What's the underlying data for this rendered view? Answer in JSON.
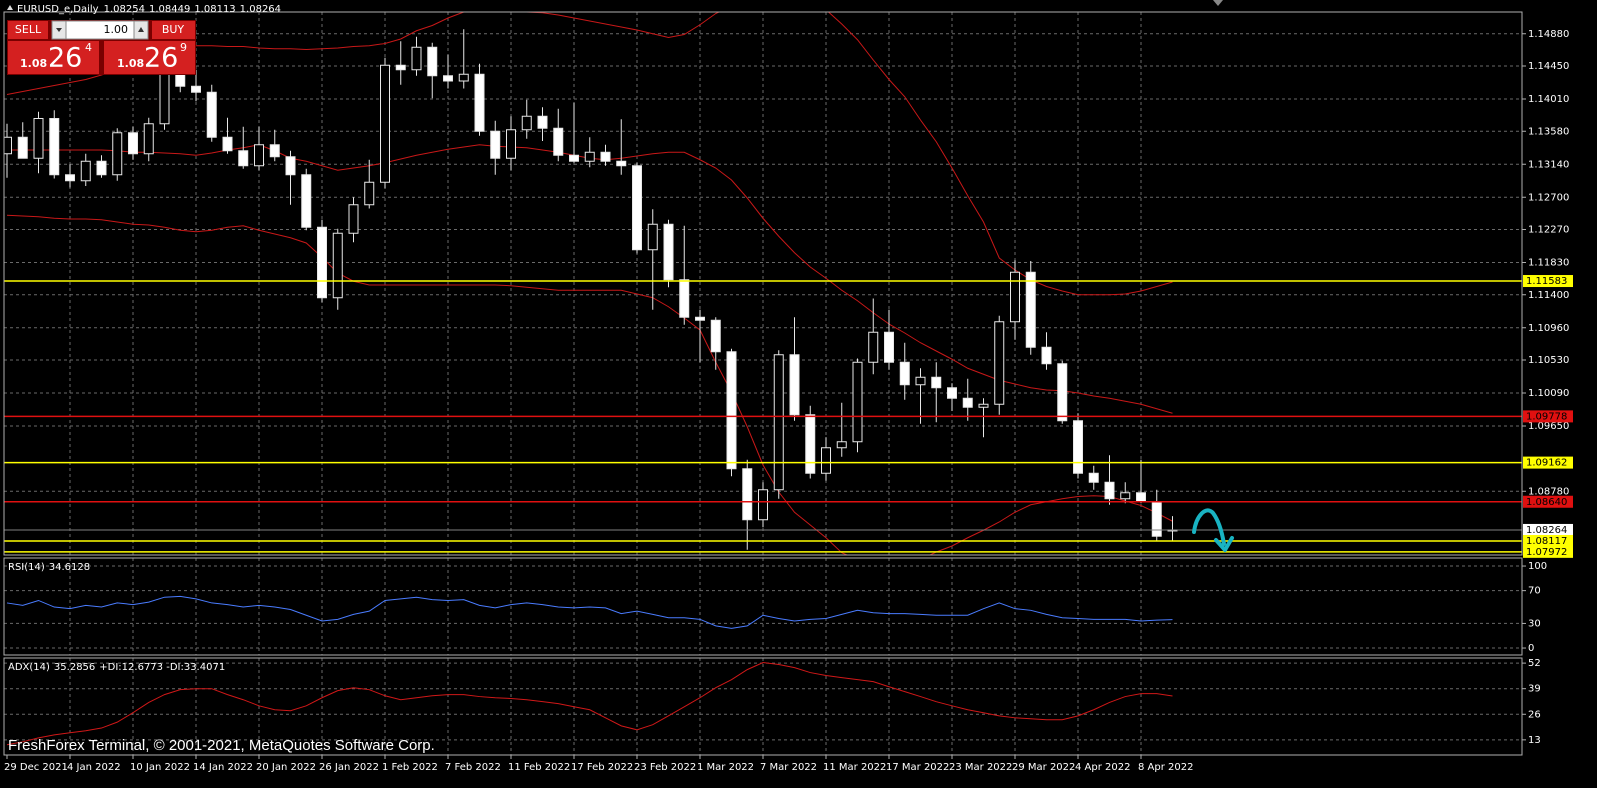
{
  "chart_data": [
    {
      "type": "candlestick",
      "title": "EURUSD_e,Daily",
      "categories": [
        "29 Dec 2021",
        null,
        null,
        null,
        "4 Jan 2022",
        null,
        null,
        null,
        "10 Jan 2022",
        null,
        null,
        null,
        "14 Jan 2022",
        null,
        null,
        null,
        "20 Jan 2022",
        null,
        null,
        null,
        "26 Jan 2022",
        null,
        null,
        null,
        "1 Feb 2022",
        null,
        null,
        null,
        "7 Feb 2022",
        null,
        null,
        null,
        "11 Feb 2022",
        null,
        null,
        null,
        "17 Feb 2022",
        null,
        null,
        null,
        "23 Feb 2022",
        null,
        null,
        null,
        "1 Mar 2022",
        null,
        null,
        null,
        "7 Mar 2022",
        null,
        null,
        null,
        "11 Mar 2022",
        null,
        null,
        null,
        "17 Mar 2022",
        null,
        null,
        null,
        "23 Mar 2022",
        null,
        null,
        null,
        "29 Mar 2022",
        null,
        null,
        null,
        "4 Apr 2022",
        null,
        null,
        null,
        "8 Apr 2022",
        null,
        null
      ],
      "open": [
        1.1328,
        1.135,
        1.1322,
        1.1375,
        1.13,
        1.1292,
        1.1318,
        1.13,
        1.1356,
        1.1328,
        1.1368,
        1.1444,
        1.1418,
        1.141,
        1.135,
        1.1332,
        1.1312,
        1.134,
        1.1324,
        1.13,
        1.123,
        1.1136,
        1.1222,
        1.126,
        1.129,
        1.1446,
        1.144,
        1.147,
        1.1432,
        1.1425,
        1.1434,
        1.1358,
        1.1322,
        1.136,
        1.1378,
        1.1362,
        1.1326,
        1.1318,
        1.133,
        1.1318,
        1.1312,
        1.12,
        1.1234,
        1.116,
        1.111,
        1.1106,
        1.1064,
        1.0908,
        1.084,
        1.088,
        1.106,
        1.098,
        1.0902,
        1.0936,
        1.0944,
        1.105,
        1.109,
        1.105,
        1.102,
        1.103,
        1.1016,
        1.1002,
        1.099,
        1.0994,
        1.1104,
        1.117,
        1.107,
        1.1048,
        1.0972,
        1.0902,
        1.089,
        1.0868,
        1.0876,
        1.0864,
        1.08254
      ],
      "high": [
        1.1368,
        1.137,
        1.1384,
        1.1386,
        1.1314,
        1.1328,
        1.1326,
        1.1362,
        1.1364,
        1.1376,
        1.146,
        1.1482,
        1.144,
        1.142,
        1.1376,
        1.1364,
        1.1364,
        1.136,
        1.1332,
        1.1308,
        1.124,
        1.1228,
        1.127,
        1.132,
        1.1456,
        1.1478,
        1.1484,
        1.1476,
        1.146,
        1.1494,
        1.1448,
        1.1372,
        1.1378,
        1.14,
        1.139,
        1.1388,
        1.1396,
        1.135,
        1.134,
        1.1374,
        1.1316,
        1.1254,
        1.124,
        1.1232,
        1.112,
        1.111,
        1.1068,
        1.092,
        1.089,
        1.1066,
        1.111,
        1.0992,
        1.095,
        1.0996,
        1.1055,
        1.1135,
        1.112,
        1.1076,
        1.1042,
        1.105,
        1.1022,
        1.1028,
        1.1002,
        1.1112,
        1.1186,
        1.1185,
        1.109,
        1.1052,
        1.0982,
        1.0912,
        1.0926,
        1.089,
        1.092,
        1.088,
        1.08449
      ],
      "low": [
        1.1296,
        1.1322,
        1.1302,
        1.1295,
        1.1283,
        1.1285,
        1.1296,
        1.1292,
        1.132,
        1.1318,
        1.136,
        1.141,
        1.1398,
        1.1344,
        1.1328,
        1.1308,
        1.1306,
        1.1318,
        1.126,
        1.1226,
        1.113,
        1.112,
        1.121,
        1.1255,
        1.1282,
        1.142,
        1.1432,
        1.1402,
        1.1415,
        1.1415,
        1.1352,
        1.13,
        1.1306,
        1.1348,
        1.1345,
        1.1318,
        1.1316,
        1.131,
        1.1312,
        1.13,
        1.1195,
        1.112,
        1.115,
        1.11,
        1.105,
        1.104,
        1.0898,
        1.08,
        1.083,
        1.0868,
        1.0972,
        1.0895,
        1.0892,
        1.0924,
        1.093,
        1.1034,
        1.104,
        1.1,
        1.0968,
        1.097,
        1.0985,
        1.0972,
        1.095,
        1.098,
        1.108,
        1.106,
        1.104,
        1.0968,
        1.0895,
        1.088,
        1.086,
        1.0862,
        1.0862,
        1.0812,
        1.08113
      ],
      "close": [
        1.135,
        1.1322,
        1.1375,
        1.13,
        1.1292,
        1.1318,
        1.13,
        1.1356,
        1.1328,
        1.1368,
        1.1444,
        1.1418,
        1.141,
        1.135,
        1.1332,
        1.1312,
        1.134,
        1.1324,
        1.13,
        1.123,
        1.1136,
        1.1222,
        1.126,
        1.129,
        1.1446,
        1.144,
        1.147,
        1.1432,
        1.1425,
        1.1434,
        1.1358,
        1.1322,
        1.136,
        1.1378,
        1.1362,
        1.1326,
        1.1318,
        1.133,
        1.1318,
        1.1312,
        1.12,
        1.1234,
        1.116,
        1.111,
        1.1106,
        1.1064,
        1.0908,
        1.084,
        1.088,
        1.106,
        1.098,
        1.0902,
        1.0936,
        1.0944,
        1.105,
        1.109,
        1.105,
        1.102,
        1.103,
        1.1016,
        1.1002,
        1.099,
        1.0994,
        1.1104,
        1.117,
        1.107,
        1.1048,
        1.0972,
        1.0902,
        1.089,
        1.0868,
        1.0876,
        1.0864,
        1.0818,
        1.08264
      ],
      "up_color": "#000000",
      "down_color": "#ffffff",
      "wick_color": "#e8e8e8",
      "bands": [
        {
          "color": "#c81818",
          "values": [
            1.1407,
            1.1411,
            1.1415,
            1.1419,
            1.1423,
            1.1427,
            1.1433,
            1.144,
            1.1447,
            1.1453,
            1.146,
            1.1465,
            1.1472,
            1.1472,
            1.1471,
            1.1471,
            1.1469,
            1.1468,
            1.1468,
            1.1467,
            1.1468,
            1.1469,
            1.1471,
            1.1472,
            1.1475,
            1.1481,
            1.1492,
            1.1499,
            1.1509,
            1.1517,
            1.1523,
            1.1521,
            1.152,
            1.1517,
            1.1516,
            1.1513,
            1.1509,
            1.1505,
            1.1501,
            1.1497,
            1.1493,
            1.1488,
            1.1483,
            1.1487,
            1.15,
            1.1515,
            1.1525,
            1.1531,
            1.1533,
            1.1532,
            1.1531,
            1.1529,
            1.152,
            1.1501,
            1.148,
            1.1453,
            1.1427,
            1.1404,
            1.1373,
            1.1344,
            1.1309,
            1.1272,
            1.1237,
            1.1189,
            1.1173,
            1.116,
            1.1151,
            1.1145,
            1.114,
            1.114,
            1.114,
            1.1141,
            1.1145,
            1.1151,
            1.1157
          ]
        },
        {
          "color": "#c81818",
          "values": [
            1.1333,
            1.1333,
            1.1333,
            1.1333,
            1.1333,
            1.1333,
            1.1333,
            1.1332,
            1.133,
            1.133,
            1.1329,
            1.1328,
            1.1326,
            1.1329,
            1.1333,
            1.1336,
            1.134,
            1.1332,
            1.1322,
            1.1318,
            1.1312,
            1.1306,
            1.1309,
            1.1312,
            1.1316,
            1.1321,
            1.1326,
            1.133,
            1.1334,
            1.1337,
            1.134,
            1.1338,
            1.1337,
            1.1336,
            1.1333,
            1.133,
            1.1326,
            1.1322,
            1.132,
            1.1322,
            1.1325,
            1.1328,
            1.133,
            1.133,
            1.132,
            1.1309,
            1.1293,
            1.1269,
            1.1242,
            1.1218,
            1.1196,
            1.1177,
            1.1162,
            1.1146,
            1.1132,
            1.1116,
            1.1101,
            1.1089,
            1.1076,
            1.1065,
            1.1054,
            1.1042,
            1.1034,
            1.1026,
            1.1021,
            1.1016,
            1.1013,
            1.1012,
            1.1009,
            1.1005,
            1.1002,
            1.0998,
            1.0994,
            1.0988,
            1.0982
          ]
        },
        {
          "color": "#c81818",
          "values": [
            1.1246,
            1.1245,
            1.1244,
            1.1242,
            1.1241,
            1.1241,
            1.124,
            1.1237,
            1.1234,
            1.1233,
            1.123,
            1.1226,
            1.1224,
            1.1226,
            1.123,
            1.1232,
            1.1226,
            1.1221,
            1.1216,
            1.1209,
            1.119,
            1.1169,
            1.1158,
            1.1153,
            1.1153,
            1.1153,
            1.1153,
            1.1153,
            1.1153,
            1.1153,
            1.1153,
            1.1153,
            1.1152,
            1.115,
            1.1148,
            1.1146,
            1.1146,
            1.1146,
            1.1146,
            1.1146,
            1.1141,
            1.1136,
            1.1124,
            1.1109,
            1.1093,
            1.105,
            1.101,
            1.0964,
            1.0913,
            1.0877,
            1.085,
            1.0833,
            1.0816,
            1.0796,
            1.0787,
            1.0787,
            1.0787,
            1.0787,
            1.0787,
            1.0797,
            1.0805,
            1.0816,
            1.0826,
            1.0837,
            1.085,
            1.086,
            1.0864,
            1.0868,
            1.0871,
            1.0872,
            1.0871,
            1.0865,
            1.0859,
            1.0849,
            1.0838
          ]
        }
      ],
      "levels": [
        {
          "value": 1.11583,
          "color": "#ffff00"
        },
        {
          "value": 1.09778,
          "color": "#e01010"
        },
        {
          "value": 1.09162,
          "color": "#ffff00"
        },
        {
          "value": 1.0864,
          "label": "1.08640",
          "color": "#e01010"
        },
        {
          "value": 1.08117,
          "color": "#ffff00"
        },
        {
          "value": 1.07972,
          "color": "#ffff00"
        }
      ],
      "bid_line_color": "#808080",
      "ylim": [
        1.0793,
        1.1517
      ],
      "yticks": [
        {
          "value": 1.1488,
          "label": "1.14880"
        },
        {
          "value": 1.1445,
          "label": "1.14450"
        },
        {
          "value": 1.1401,
          "label": "1.14010"
        },
        {
          "value": 1.1358,
          "label": "1.13580"
        },
        {
          "value": 1.1314,
          "label": "1.13140"
        },
        {
          "value": 1.127,
          "label": "1.12700"
        },
        {
          "value": 1.1227,
          "label": "1.12270"
        },
        {
          "value": 1.1183,
          "label": "1.11830"
        },
        {
          "value": 1.114,
          "label": "1.11400"
        },
        {
          "value": 1.1096,
          "label": "1.10960"
        },
        {
          "value": 1.1053,
          "label": "1.10530"
        },
        {
          "value": 1.1009,
          "label": "1.10090"
        },
        {
          "value": 1.0965,
          "label": "1.09650"
        },
        {
          "value": 1.0878,
          "label": "1.08780"
        }
      ],
      "grid": true
    },
    {
      "type": "line",
      "title": "RSI(14)",
      "color": "#4a7cff",
      "values": [
        55,
        52,
        58,
        50,
        48,
        52,
        50,
        55,
        53,
        56,
        62,
        63,
        60,
        55,
        53,
        50,
        52,
        50,
        47,
        40,
        33,
        35,
        41,
        45,
        58,
        60,
        62,
        59,
        58,
        59,
        52,
        49,
        53,
        55,
        53,
        50,
        49,
        50,
        49,
        42,
        45,
        41,
        37,
        37,
        35,
        27,
        24,
        27,
        40,
        36,
        33,
        35,
        36,
        41,
        46,
        43,
        42,
        42,
        41,
        40,
        40,
        40,
        48,
        55,
        48,
        46,
        41,
        37,
        36,
        35,
        35,
        35,
        33,
        34,
        34.6128
      ],
      "ylim": [
        -8.5,
        109.8
      ],
      "yticks": [
        0,
        30,
        70,
        100
      ],
      "grid": true
    },
    {
      "type": "line",
      "title": "ADX(14)",
      "subtitle": "+DI:12.6773 -DI:33.4071",
      "color": "#d01818",
      "values": [
        10.5,
        12,
        14,
        15.5,
        16.6,
        17.6,
        19,
        22,
        26.8,
        32,
        36,
        38.5,
        39,
        39,
        36,
        33.4,
        30.3,
        28.3,
        27.8,
        30.3,
        34.4,
        38,
        39.5,
        38.5,
        35.4,
        33.4,
        34.4,
        35.4,
        36,
        36,
        35,
        34.4,
        34,
        33.4,
        32.4,
        31.4,
        29.8,
        28.3,
        24.2,
        20.1,
        18.1,
        20.7,
        25.2,
        29.8,
        34.4,
        39.5,
        43.6,
        48.7,
        52.3,
        51.3,
        49.7,
        47.2,
        45.7,
        44.6,
        43.6,
        42.6,
        40,
        37.5,
        35,
        32.4,
        30.3,
        28.3,
        26.8,
        25.2,
        24.2,
        23.7,
        23.2,
        23.2,
        25.2,
        28.3,
        32,
        35,
        36.5,
        36.5,
        35.2856
      ],
      "ylim": [
        5.3,
        54.6
      ],
      "yticks": [
        13,
        26,
        39,
        52
      ],
      "grid": true
    }
  ],
  "trade_panel": {
    "sell": "SELL",
    "buy": "BUY",
    "volume": "1.00",
    "sell_price": {
      "big_figure": "1.08",
      "pips": "26",
      "fraction": "4"
    },
    "buy_price": {
      "big_figure": "1.08",
      "pips": "26",
      "fraction": "9"
    }
  },
  "watermark": "FreshForex Terminal, © 2001-2021, MetaQuotes Software Corp."
}
